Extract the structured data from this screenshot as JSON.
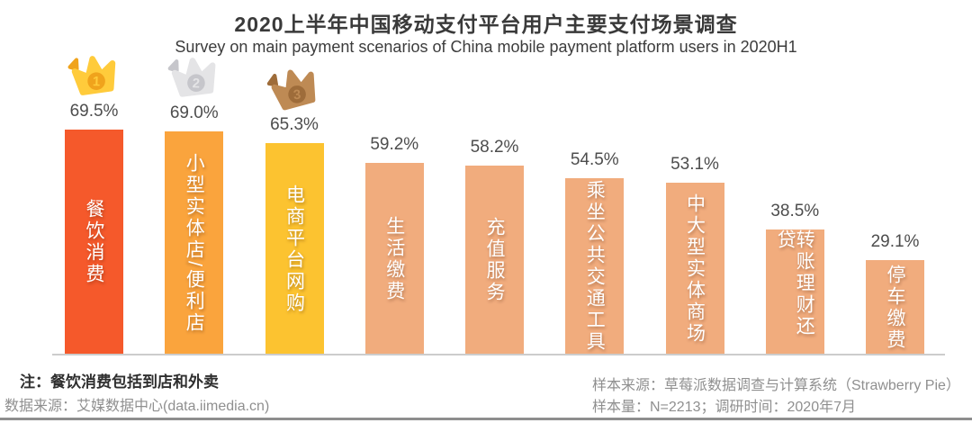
{
  "header": {
    "title": "2020上半年中国移动支付平台用户主要支付场景调查",
    "subtitle": "Survey on main payment scenarios of China mobile payment platform users in 2020H1"
  },
  "chart_data": {
    "type": "bar",
    "categories": [
      "餐饮消费",
      "小型实体店/便利店",
      "电商平台网购",
      "生活缴费",
      "充值服务",
      "乘坐公共交通工具",
      "中大型实体商场",
      "转账理财还贷",
      "停车缴费"
    ],
    "values": [
      69.5,
      69.0,
      65.3,
      59.2,
      58.2,
      54.5,
      53.1,
      38.5,
      29.1
    ],
    "value_labels": [
      "69.5%",
      "69.0%",
      "65.3%",
      "59.2%",
      "58.2%",
      "54.5%",
      "53.1%",
      "38.5%",
      "29.1%"
    ],
    "bar_colors": [
      "#F5592B",
      "#FAA43D",
      "#FCC330",
      "#F1AC7D",
      "#F1AC7D",
      "#F1AC7D",
      "#F1AC7D",
      "#F1AC7D",
      "#F1AC7D"
    ],
    "rank_badges": [
      {
        "rank": "1",
        "name": "gold-crown",
        "body": "#FFCB3B",
        "accent": "#F0A31C"
      },
      {
        "rank": "2",
        "name": "silver-crown",
        "body": "#E4E4E6",
        "accent": "#C6C6CB"
      },
      {
        "rank": "3",
        "name": "bronze-crown",
        "body": "#BE8A54",
        "accent": "#9E6C3A"
      }
    ],
    "ylim": [
      0,
      75
    ],
    "grid": false,
    "legend": false,
    "value_label_color": "#4d4d4d",
    "bar_text_color": "#ffffff"
  },
  "footer": {
    "note": "注：餐饮消费包括到店和外卖",
    "data_source": "数据来源：艾媒数据中心(data.iimedia.cn)",
    "sample_source": "样本来源：草莓派数据调查与计算系统（Strawberry Pie）",
    "sample_size": "样本量：N=2213；调研时间：2020年7月"
  }
}
